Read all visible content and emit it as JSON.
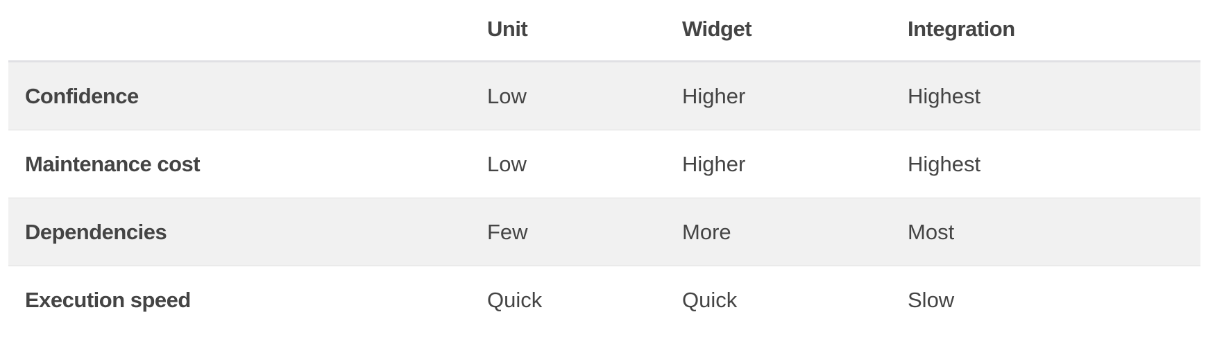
{
  "table": {
    "headers": [
      "",
      "Unit",
      "Widget",
      "Integration"
    ],
    "rows": [
      {
        "label": "Confidence",
        "values": [
          "Low",
          "Higher",
          "Highest"
        ]
      },
      {
        "label": "Maintenance cost",
        "values": [
          "Low",
          "Higher",
          "Highest"
        ]
      },
      {
        "label": "Dependencies",
        "values": [
          "Few",
          "More",
          "Most"
        ]
      },
      {
        "label": "Execution speed",
        "values": [
          "Quick",
          "Quick",
          "Slow"
        ]
      }
    ]
  },
  "colors": {
    "text": "#444444",
    "row_shade": "#f1f1f1",
    "header_rule": "#e0e0e4",
    "row_rule": "#dedede"
  }
}
